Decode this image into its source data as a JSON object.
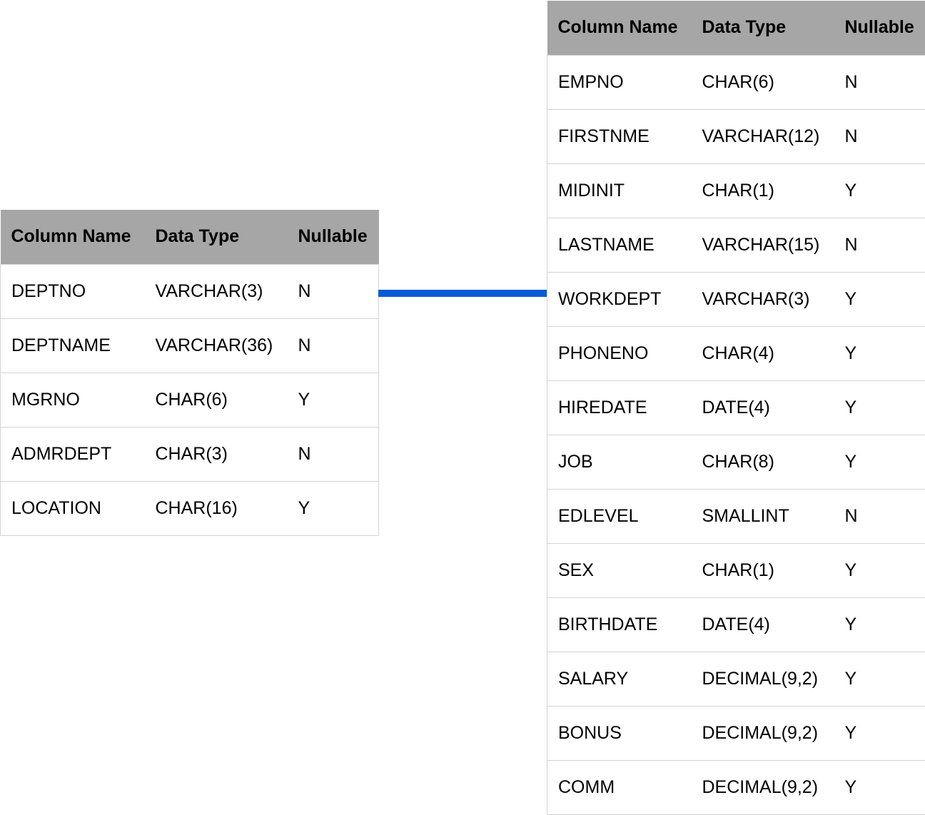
{
  "connector_color": "#0a5bd6",
  "header_color": "#a6a6a6",
  "headers": {
    "column_name": "Column Name",
    "data_type": "Data Type",
    "nullable": "Nullable"
  },
  "department_table": {
    "rows": [
      {
        "name": "DEPTNO",
        "type": "VARCHAR(3)",
        "nullable": "N"
      },
      {
        "name": "DEPTNAME",
        "type": "VARCHAR(36)",
        "nullable": "N"
      },
      {
        "name": "MGRNO",
        "type": "CHAR(6)",
        "nullable": "Y"
      },
      {
        "name": "ADMRDEPT",
        "type": "CHAR(3)",
        "nullable": "N"
      },
      {
        "name": "LOCATION",
        "type": "CHAR(16)",
        "nullable": "Y"
      }
    ]
  },
  "employee_table": {
    "rows": [
      {
        "name": "EMPNO",
        "type": "CHAR(6)",
        "nullable": "N"
      },
      {
        "name": "FIRSTNME",
        "type": "VARCHAR(12)",
        "nullable": "N"
      },
      {
        "name": "MIDINIT",
        "type": "CHAR(1)",
        "nullable": "Y"
      },
      {
        "name": "LASTNAME",
        "type": "VARCHAR(15)",
        "nullable": "N"
      },
      {
        "name": "WORKDEPT",
        "type": "VARCHAR(3)",
        "nullable": "Y"
      },
      {
        "name": "PHONENO",
        "type": "CHAR(4)",
        "nullable": "Y"
      },
      {
        "name": "HIREDATE",
        "type": "DATE(4)",
        "nullable": "Y"
      },
      {
        "name": "JOB",
        "type": "CHAR(8)",
        "nullable": "Y"
      },
      {
        "name": "EDLEVEL",
        "type": "SMALLINT",
        "nullable": "N"
      },
      {
        "name": "SEX",
        "type": "CHAR(1)",
        "nullable": "Y"
      },
      {
        "name": "BIRTHDATE",
        "type": "DATE(4)",
        "nullable": "Y"
      },
      {
        "name": "SALARY",
        "type": "DECIMAL(9,2)",
        "nullable": "Y"
      },
      {
        "name": "BONUS",
        "type": "DECIMAL(9,2)",
        "nullable": "Y"
      },
      {
        "name": "COMM",
        "type": "DECIMAL(9,2)",
        "nullable": "Y"
      }
    ]
  }
}
